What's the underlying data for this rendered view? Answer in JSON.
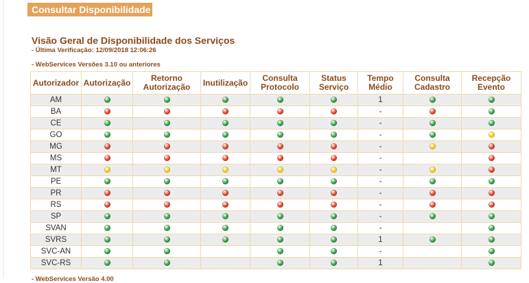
{
  "header": {
    "title": "Consultar Disponibilidade"
  },
  "section": {
    "title": "Visão Geral de Disponibilidade dos Serviços",
    "last_check": "- Última Verificação: 12/09/2018 12:06:26",
    "ws_version": "- WebServices Versões 3.10 ou anteriores",
    "footer_cut": "- WebServices Versão 4.00"
  },
  "colors": {
    "green": "#2e9a3c",
    "red": "#e03a1e",
    "yellow": "#f2cc0c",
    "header_tab": "#e5a25a",
    "title_text": "#8b4a1a",
    "border": "#f1d7ae",
    "row_alt": "#ececec"
  },
  "table": {
    "columns": [
      "Autorizador",
      "Autorização",
      "Retorno Autorização",
      "Inutilização",
      "Consulta Protocolo",
      "Status Serviço",
      "Tempo Médio",
      "Consulta Cadastro",
      "Recepção Evento"
    ],
    "rows": [
      {
        "name": "AM",
        "cells": [
          "green",
          "green",
          "green",
          "green",
          "green",
          "1",
          "green",
          "green"
        ]
      },
      {
        "name": "BA",
        "cells": [
          "red",
          "red",
          "red",
          "red",
          "red",
          "-",
          "red",
          "green"
        ]
      },
      {
        "name": "CE",
        "cells": [
          "green",
          "green",
          "green",
          "green",
          "green",
          "-",
          "green",
          "green"
        ]
      },
      {
        "name": "GO",
        "cells": [
          "green",
          "green",
          "green",
          "green",
          "green",
          "-",
          "green",
          "yellow"
        ]
      },
      {
        "name": "MG",
        "cells": [
          "red",
          "red",
          "red",
          "red",
          "red",
          "-",
          "yellow",
          "red"
        ]
      },
      {
        "name": "MS",
        "cells": [
          "red",
          "red",
          "red",
          "red",
          "red",
          "-",
          "",
          "red"
        ]
      },
      {
        "name": "MT",
        "cells": [
          "yellow",
          "yellow",
          "yellow",
          "yellow",
          "yellow",
          "-",
          "yellow",
          "red"
        ]
      },
      {
        "name": "PE",
        "cells": [
          "green",
          "green",
          "green",
          "green",
          "green",
          "-",
          "green",
          "green"
        ]
      },
      {
        "name": "PR",
        "cells": [
          "red",
          "red",
          "red",
          "red",
          "red",
          "-",
          "red",
          "red"
        ]
      },
      {
        "name": "RS",
        "cells": [
          "red",
          "red",
          "red",
          "red",
          "red",
          "-",
          "red",
          "red"
        ]
      },
      {
        "name": "SP",
        "cells": [
          "green",
          "green",
          "green",
          "green",
          "green",
          "-",
          "green",
          "green"
        ]
      },
      {
        "name": "SVAN",
        "cells": [
          "green",
          "green",
          "green",
          "green",
          "green",
          "-",
          "",
          "green"
        ]
      },
      {
        "name": "SVRS",
        "cells": [
          "green",
          "green",
          "green",
          "green",
          "green",
          "1",
          "green",
          "green"
        ]
      },
      {
        "name": "SVC-AN",
        "cells": [
          "green",
          "green",
          "",
          "green",
          "green",
          "-",
          "",
          "green"
        ]
      },
      {
        "name": "SVC-RS",
        "cells": [
          "green",
          "green",
          "",
          "green",
          "green",
          "1",
          "",
          "green"
        ]
      }
    ]
  }
}
